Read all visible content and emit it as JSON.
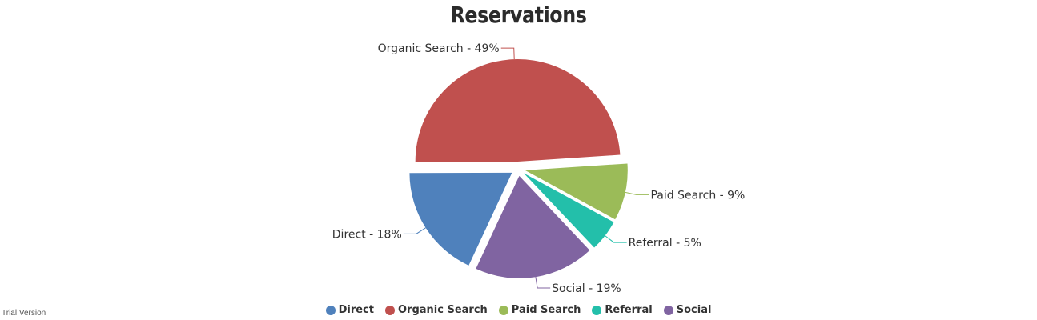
{
  "chart_data": {
    "type": "pie",
    "title": "Reservations",
    "slices": [
      {
        "name": "Direct",
        "value": 18,
        "label": "Direct - 18%",
        "color": "#4f81bc"
      },
      {
        "name": "Organic Search",
        "value": 49,
        "label": "Organic Search - 49%",
        "color": "#c0504e"
      },
      {
        "name": "Paid Search",
        "value": 9,
        "label": "Paid Search - 9%",
        "color": "#9bbb58"
      },
      {
        "name": "Referral",
        "value": 5,
        "label": "Referral - 5%",
        "color": "#23bfaa"
      },
      {
        "name": "Social",
        "value": 19,
        "label": "Social - 19%",
        "color": "#8064a1"
      }
    ],
    "exploded": [
      "Direct",
      "Organic Search",
      "Paid Search",
      "Referral",
      "Social"
    ],
    "legend_position": "bottom-center"
  },
  "footer": {
    "trial_text": "Trial Version"
  }
}
